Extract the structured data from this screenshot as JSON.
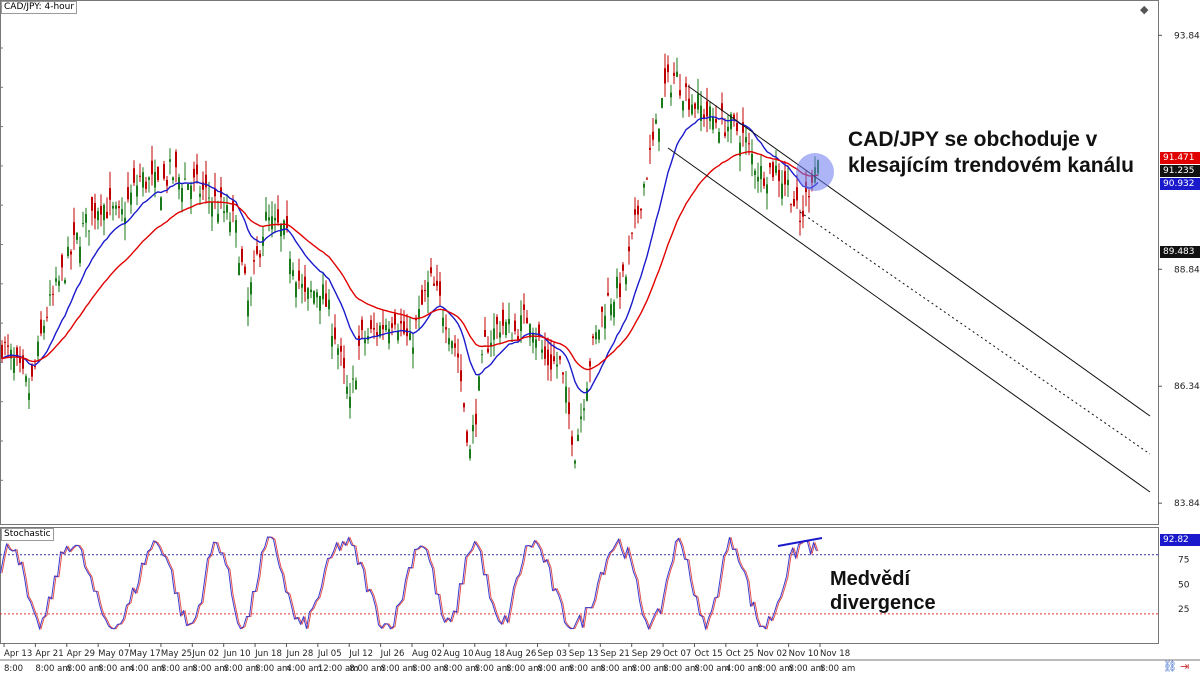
{
  "chart_data": [
    {
      "type": "candlestick",
      "title": "CAD/JPY: 4-hour",
      "price_axis_ticks": [
        "93.845",
        "88.845",
        "86.345",
        "83.845"
      ],
      "ylim": [
        83.4,
        94.6
      ],
      "price_tags": {
        "red": "91.471",
        "black": "91.235",
        "blue": "90.932",
        "dark": "89.483"
      },
      "moving_average_colors": {
        "fast": "#1a1acc",
        "slow": "#e00000"
      },
      "candle_up_color": "#1a7a1a",
      "candle_down_color": "#c00000",
      "annotations": {
        "channel_note": [
          "CAD/JPY se obchoduje v",
          "klesajícím trendovém kanálu"
        ]
      }
    },
    {
      "type": "line",
      "title": "Stochastic",
      "ylim": [
        0,
        100
      ],
      "y_ticks": [
        "75",
        "50",
        "25"
      ],
      "levels": [
        80,
        20
      ],
      "last_value_tag": "92.82",
      "annotations": {
        "divergence_note": [
          "Medvědí",
          "divergence"
        ]
      }
    }
  ],
  "x_axis": {
    "date_labels": [
      "Apr 13",
      "Apr 21",
      "Apr 29",
      "May 07",
      "May 17",
      "May 25",
      "Jun 02",
      "Jun 10",
      "Jun 18",
      "Jun 28",
      "Jul 05",
      "Jul 12",
      "Jul 26",
      "Aug 02",
      "Aug 10",
      "Aug 18",
      "Aug 26",
      "Sep 03",
      "Sep 13",
      "Sep 21",
      "Sep 29",
      "Oct 07",
      "Oct 15",
      "Oct 25",
      "Nov 02",
      "Nov 10",
      "Nov 18"
    ],
    "time_labels": [
      "8:00",
      "8:00 am",
      "8:00 am",
      "8:00 am",
      "4:00 am",
      "8:00 am",
      "8:00 am",
      "8:00 am",
      "8:00 am",
      "4:00 am",
      "12:00 am",
      "8:00 am",
      "8:00 am",
      "8:00 am",
      "8:00 am",
      "8:00 am",
      "8:00 am",
      "8:00 am",
      "8:00 am",
      "8:00 am",
      "8:00 am",
      "8:00 am",
      "8:00 am",
      "4:00 am",
      "8:00 am",
      "8:00 am",
      "8:00 am"
    ]
  },
  "icons": {
    "corner": "diamond-icon",
    "bottom_left": "chain-link-icon",
    "bottom_right": "arrow-right-icon"
  }
}
